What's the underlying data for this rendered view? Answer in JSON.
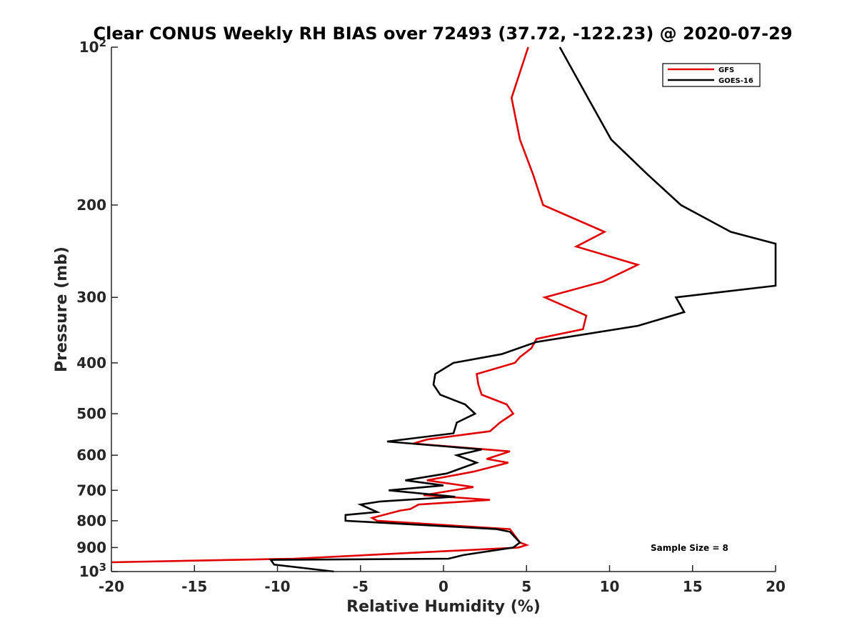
{
  "chart_data": {
    "type": "line",
    "title": "Clear CONUS Weekly RH BIAS over 72493 (37.72, -122.23) @ 2020-07-29",
    "xlabel": "Relative Humidity (%)",
    "ylabel": "Pressure (mb)",
    "xlim": [
      -20,
      20
    ],
    "ylim": [
      100,
      1000
    ],
    "y_scale": "log",
    "y_reversed": true,
    "grid": false,
    "legend_position": "top-right",
    "x_ticks": [
      "-20",
      "-15",
      "-10",
      "-5",
      "0",
      "5",
      "10",
      "15",
      "20"
    ],
    "y_ticks": {
      "top_base": "10",
      "top_exp": "2",
      "mid": [
        "200",
        "300",
        "400",
        "500",
        "600",
        "700",
        "800",
        "900"
      ],
      "bottom_base": "10",
      "bottom_exp": "3"
    },
    "annotation": "Sample Size = 8",
    "series": [
      {
        "name": "GFS",
        "color": "#e00000",
        "points": [
          [
            5.1,
            100
          ],
          [
            4.1,
            125
          ],
          [
            4.6,
            150
          ],
          [
            5.4,
            175
          ],
          [
            6.0,
            200
          ],
          [
            9.7,
            225
          ],
          [
            8.0,
            240
          ],
          [
            11.7,
            260
          ],
          [
            9.6,
            280
          ],
          [
            6.1,
            300
          ],
          [
            8.6,
            325
          ],
          [
            8.4,
            345
          ],
          [
            5.6,
            360
          ],
          [
            5.3,
            375
          ],
          [
            4.6,
            390
          ],
          [
            4.3,
            400
          ],
          [
            2.0,
            420
          ],
          [
            2.1,
            440
          ],
          [
            2.3,
            460
          ],
          [
            3.8,
            480
          ],
          [
            4.2,
            500
          ],
          [
            3.4,
            520
          ],
          [
            2.8,
            540
          ],
          [
            -1.0,
            560
          ],
          [
            -1.8,
            570
          ],
          [
            4.0,
            590
          ],
          [
            2.6,
            610
          ],
          [
            3.9,
            620
          ],
          [
            1.8,
            645
          ],
          [
            -1.0,
            670
          ],
          [
            1.8,
            690
          ],
          [
            -1.2,
            715
          ],
          [
            2.8,
            730
          ],
          [
            -1.5,
            745
          ],
          [
            -2.0,
            760
          ],
          [
            -2.6,
            765
          ],
          [
            -4.3,
            790
          ],
          [
            -4.0,
            800
          ],
          [
            4.0,
            830
          ],
          [
            4.6,
            880
          ],
          [
            5.0,
            890
          ],
          [
            4.5,
            900
          ],
          [
            -9.0,
            945
          ],
          [
            -20.0,
            960
          ]
        ]
      },
      {
        "name": "GOES-16",
        "color": "#000000",
        "points": [
          [
            7.0,
            100
          ],
          [
            8.7,
            125
          ],
          [
            10.1,
            150
          ],
          [
            12.3,
            175
          ],
          [
            14.3,
            200
          ],
          [
            17.3,
            225
          ],
          [
            20.0,
            237
          ],
          [
            20.0,
            285
          ],
          [
            14.0,
            300
          ],
          [
            14.5,
            320
          ],
          [
            11.7,
            340
          ],
          [
            5.6,
            365
          ],
          [
            3.5,
            385
          ],
          [
            0.6,
            400
          ],
          [
            -0.5,
            420
          ],
          [
            -0.6,
            440
          ],
          [
            -0.2,
            460
          ],
          [
            1.3,
            480
          ],
          [
            1.9,
            500
          ],
          [
            0.8,
            520
          ],
          [
            0.6,
            545
          ],
          [
            -3.4,
            565
          ],
          [
            2.3,
            585
          ],
          [
            0.8,
            600
          ],
          [
            2.0,
            620
          ],
          [
            0.2,
            650
          ],
          [
            -2.3,
            670
          ],
          [
            0.0,
            685
          ],
          [
            -3.3,
            700
          ],
          [
            0.7,
            720
          ],
          [
            -3.8,
            735
          ],
          [
            -5.0,
            745
          ],
          [
            -4.0,
            770
          ],
          [
            -5.9,
            780
          ],
          [
            -5.9,
            800
          ],
          [
            3.2,
            830
          ],
          [
            4.0,
            840
          ],
          [
            4.6,
            880
          ],
          [
            4.2,
            900
          ],
          [
            1.2,
            930
          ],
          [
            0.3,
            945
          ],
          [
            -10.4,
            950
          ],
          [
            -10.2,
            970
          ],
          [
            -6.6,
            1000
          ]
        ]
      }
    ]
  }
}
